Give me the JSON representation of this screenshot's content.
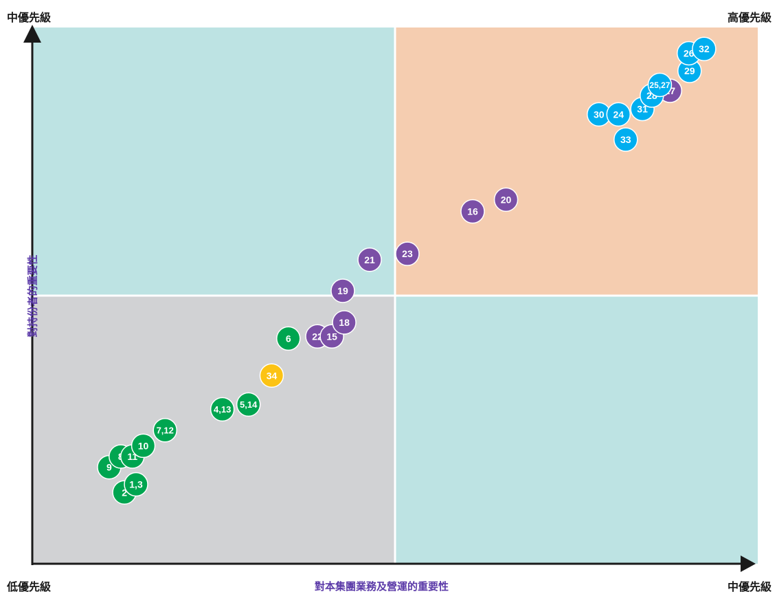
{
  "corner_labels": {
    "top_left": "中優先級",
    "top_right": "高優先級",
    "bottom_left": "低優先級",
    "bottom_right": "中優先級"
  },
  "colors": {
    "quadrant_top_left": "#bde3e3",
    "quadrant_top_right": "#f5cdb0",
    "quadrant_bottom_left": "#d1d2d4",
    "quadrant_bottom_right": "#bde3e3",
    "axis": "#1a1a1a",
    "axis_label": "#5b3aa8",
    "group_green": "#00a550",
    "group_purple": "#7b4fa6",
    "group_blue": "#00aeef",
    "group_yellow": "#fcc314"
  },
  "chart_data": {
    "type": "scatter",
    "xlabel": "對本集團業務及營運的重要性",
    "ylabel": "對持份者的重要性",
    "xlim": [
      0,
      100
    ],
    "ylim": [
      0,
      100
    ],
    "grid": false,
    "quadrant_split": {
      "x": 50,
      "y": 50
    },
    "points": [
      {
        "label": "2",
        "x": 12.7,
        "y": 13.3,
        "group": "green"
      },
      {
        "label": "1,3",
        "x": 14.3,
        "y": 14.8,
        "group": "green"
      },
      {
        "label": "9",
        "x": 10.6,
        "y": 18.0,
        "group": "green"
      },
      {
        "label": "8",
        "x": 12.2,
        "y": 20.0,
        "group": "green"
      },
      {
        "label": "11",
        "x": 13.8,
        "y": 20.0,
        "group": "green"
      },
      {
        "label": "10",
        "x": 15.3,
        "y": 22.0,
        "group": "green"
      },
      {
        "label": "7,12",
        "x": 18.3,
        "y": 24.9,
        "group": "green"
      },
      {
        "label": "4,13",
        "x": 26.2,
        "y": 28.8,
        "group": "green"
      },
      {
        "label": "5,14",
        "x": 29.8,
        "y": 29.7,
        "group": "green"
      },
      {
        "label": "6",
        "x": 35.3,
        "y": 42.0,
        "group": "green"
      },
      {
        "label": "34",
        "x": 33.0,
        "y": 35.1,
        "group": "yellow"
      },
      {
        "label": "22",
        "x": 39.3,
        "y": 42.4,
        "group": "purple"
      },
      {
        "label": "15",
        "x": 41.3,
        "y": 42.4,
        "group": "purple"
      },
      {
        "label": "18",
        "x": 43.0,
        "y": 45.0,
        "group": "purple"
      },
      {
        "label": "19",
        "x": 42.8,
        "y": 50.9,
        "group": "purple"
      },
      {
        "label": "21",
        "x": 46.5,
        "y": 56.7,
        "group": "purple"
      },
      {
        "label": "23",
        "x": 51.7,
        "y": 57.8,
        "group": "purple"
      },
      {
        "label": "16",
        "x": 60.7,
        "y": 65.7,
        "group": "purple"
      },
      {
        "label": "20",
        "x": 65.3,
        "y": 67.9,
        "group": "purple"
      },
      {
        "label": "17",
        "x": 87.9,
        "y": 88.2,
        "group": "purple"
      },
      {
        "label": "33",
        "x": 81.8,
        "y": 79.1,
        "group": "blue"
      },
      {
        "label": "30",
        "x": 78.1,
        "y": 83.8,
        "group": "blue"
      },
      {
        "label": "24",
        "x": 80.8,
        "y": 83.8,
        "group": "blue"
      },
      {
        "label": "31",
        "x": 84.1,
        "y": 84.8,
        "group": "blue"
      },
      {
        "label": "28",
        "x": 85.4,
        "y": 87.3,
        "group": "blue"
      },
      {
        "label": "25,27",
        "x": 86.5,
        "y": 89.3,
        "group": "blue"
      },
      {
        "label": "29",
        "x": 90.6,
        "y": 91.9,
        "group": "blue"
      },
      {
        "label": "26",
        "x": 90.5,
        "y": 95.2,
        "group": "blue"
      },
      {
        "label": "32",
        "x": 92.6,
        "y": 96.0,
        "group": "blue"
      }
    ]
  }
}
